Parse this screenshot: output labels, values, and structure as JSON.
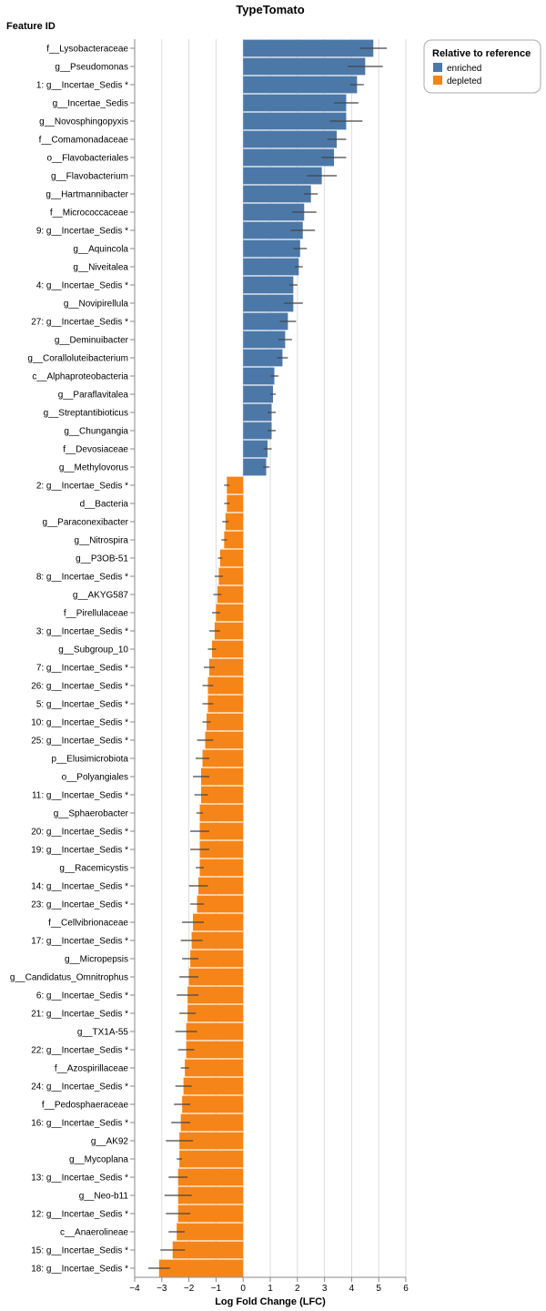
{
  "chart_data": {
    "type": "bar",
    "orientation": "horizontal",
    "title": "TypeTomato",
    "xlabel": "Log Fold Change (LFC)",
    "ylabel": "Feature ID",
    "xlim": [
      -4,
      6
    ],
    "x_ticks": [
      "−4",
      "−3",
      "−2",
      "−1",
      "0",
      "1",
      "2",
      "3",
      "4",
      "5",
      "6"
    ],
    "grid": true,
    "legend": {
      "title": "Relative to reference",
      "placement": "top-right",
      "entries": [
        {
          "label": "enriched",
          "color": "#4c78a8"
        },
        {
          "label": "depleted",
          "color": "#f58518"
        }
      ]
    },
    "categories": [
      "f__Lysobacteraceae",
      "g__Pseudomonas",
      "1: g__Incertae_Sedis *",
      "g__Incertae_Sedis",
      "g__Novosphingopyxis",
      "f__Comamonadaceae",
      "o__Flavobacteriales",
      "g__Flavobacterium",
      "g__Hartmannibacter",
      "f__Micrococcaceae",
      "9: g__Incertae_Sedis *",
      "g__Aquincola",
      "g__Niveitalea",
      "4: g__Incertae_Sedis *",
      "g__Novipirellula",
      "27: g__Incertae_Sedis *",
      "g__Deminuibacter",
      "g__Coralloluteibacterium",
      "c__Alphaproteobacteria",
      "g__Paraflavitalea",
      "g__Streptantibioticus",
      "g__Chungangia",
      "f__Devosiaceae",
      "g__Methylovorus",
      "2: g__Incertae_Sedis *",
      "d__Bacteria",
      "g__Paraconexibacter",
      "g__Nitrospira",
      "g__P3OB-51",
      "8: g__Incertae_Sedis *",
      "g__AKYG587",
      "f__Pirellulaceae",
      "3: g__Incertae_Sedis *",
      "g__Subgroup_10",
      "7: g__Incertae_Sedis *",
      "26: g__Incertae_Sedis *",
      "5: g__Incertae_Sedis *",
      "10: g__Incertae_Sedis *",
      "25: g__Incertae_Sedis *",
      "p__Elusimicrobiota",
      "o__Polyangiales",
      "11: g__Incertae_Sedis *",
      "g__Sphaerobacter",
      "20: g__Incertae_Sedis *",
      "19: g__Incertae_Sedis *",
      "g__Racemicystis",
      "14: g__Incertae_Sedis *",
      "23: g__Incertae_Sedis *",
      "f__Cellvibrionaceae",
      "17: g__Incertae_Sedis *",
      "g__Micropepsis",
      "g__Candidatus_Omnitrophus",
      "6: g__Incertae_Sedis *",
      "21: g__Incertae_Sedis *",
      "g__TX1A-55",
      "22: g__Incertae_Sedis *",
      "f__Azospirillaceae",
      "24: g__Incertae_Sedis *",
      "f__Pedosphaeraceae",
      "16: g__Incertae_Sedis *",
      "g__AK92",
      "g__Mycoplana",
      "13: g__Incertae_Sedis *",
      "g__Neo-b11",
      "12: g__Incertae_Sedis *",
      "c__Anaerolineae",
      "15: g__Incertae_Sedis *",
      "18: g__Incertae_Sedis *"
    ],
    "series": [
      {
        "name": "LFC",
        "values": [
          4.8,
          4.5,
          4.2,
          3.8,
          3.8,
          3.45,
          3.35,
          2.9,
          2.5,
          2.25,
          2.2,
          2.1,
          2.05,
          1.85,
          1.85,
          1.65,
          1.55,
          1.45,
          1.15,
          1.1,
          1.05,
          1.05,
          0.9,
          0.85,
          -0.6,
          -0.6,
          -0.65,
          -0.7,
          -0.85,
          -0.9,
          -0.95,
          -1.0,
          -1.05,
          -1.15,
          -1.25,
          -1.3,
          -1.3,
          -1.35,
          -1.4,
          -1.5,
          -1.55,
          -1.55,
          -1.6,
          -1.6,
          -1.6,
          -1.6,
          -1.65,
          -1.7,
          -1.85,
          -1.9,
          -1.95,
          -2.0,
          -2.05,
          -2.05,
          -2.1,
          -2.1,
          -2.15,
          -2.2,
          -2.25,
          -2.3,
          -2.35,
          -2.35,
          -2.4,
          -2.4,
          -2.4,
          -2.45,
          -2.6,
          -3.1
        ],
        "errors": [
          0.5,
          0.65,
          0.25,
          0.45,
          0.6,
          0.35,
          0.45,
          0.55,
          0.25,
          0.45,
          0.45,
          0.25,
          0.15,
          0.15,
          0.35,
          0.3,
          0.25,
          0.2,
          0.15,
          0.1,
          0.15,
          0.15,
          0.15,
          0.12,
          0.1,
          0.1,
          0.12,
          0.1,
          0.08,
          0.15,
          0.15,
          0.15,
          0.2,
          0.15,
          0.2,
          0.2,
          0.2,
          0.15,
          0.3,
          0.25,
          0.3,
          0.25,
          0.12,
          0.35,
          0.35,
          0.15,
          0.35,
          0.25,
          0.4,
          0.4,
          0.3,
          0.35,
          0.4,
          0.3,
          0.4,
          0.3,
          0.15,
          0.3,
          0.3,
          0.35,
          0.5,
          0.1,
          0.35,
          0.5,
          0.45,
          0.3,
          0.45,
          0.4
        ]
      }
    ]
  }
}
